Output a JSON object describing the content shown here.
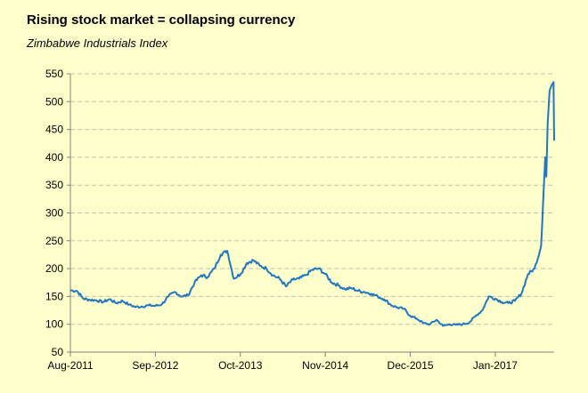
{
  "chart_data": {
    "type": "line",
    "title": "Rising stock market = collapsing currency",
    "subtitle": "Zimbabwe Industrials Index",
    "xlabel": "",
    "ylabel": "",
    "ylim": [
      50,
      550
    ],
    "yticks": [
      50,
      100,
      150,
      200,
      250,
      300,
      350,
      400,
      450,
      500,
      550
    ],
    "xlim": [
      "2011-08",
      "2017-10"
    ],
    "xticks": [
      "Aug-2011",
      "Sep-2012",
      "Oct-2013",
      "Nov-2014",
      "Dec-2015",
      "Jan-2017"
    ],
    "grid": true,
    "legend": "none",
    "line_color": "#1F77C4",
    "series": [
      {
        "name": "",
        "points": [
          [
            "2011-08",
            161
          ],
          [
            "2011-09",
            160
          ],
          [
            "2011-10",
            146
          ],
          [
            "2011-11",
            144
          ],
          [
            "2011-12",
            143
          ],
          [
            "2012-01",
            140
          ],
          [
            "2012-02",
            145
          ],
          [
            "2012-03",
            138
          ],
          [
            "2012-04",
            142
          ],
          [
            "2012-05",
            135
          ],
          [
            "2012-06",
            131
          ],
          [
            "2012-07",
            132
          ],
          [
            "2012-08",
            134
          ],
          [
            "2012-09",
            133
          ],
          [
            "2012-10",
            136
          ],
          [
            "2012-11",
            150
          ],
          [
            "2012-12",
            158
          ],
          [
            "2013-01",
            150
          ],
          [
            "2013-02",
            152
          ],
          [
            "2013-03",
            175
          ],
          [
            "2013-04",
            188
          ],
          [
            "2013-05",
            185
          ],
          [
            "2013-06",
            200
          ],
          [
            "2013-07",
            225
          ],
          [
            "2013-08",
            232
          ],
          [
            "2013-09",
            182
          ],
          [
            "2013-10",
            190
          ],
          [
            "2013-11",
            210
          ],
          [
            "2013-12",
            215
          ],
          [
            "2014-01",
            205
          ],
          [
            "2014-02",
            200
          ],
          [
            "2014-03",
            188
          ],
          [
            "2014-04",
            182
          ],
          [
            "2014-05",
            168
          ],
          [
            "2014-06",
            180
          ],
          [
            "2014-07",
            182
          ],
          [
            "2014-08",
            188
          ],
          [
            "2014-09",
            198
          ],
          [
            "2014-10",
            200
          ],
          [
            "2014-11",
            190
          ],
          [
            "2014-12",
            175
          ],
          [
            "2015-01",
            170
          ],
          [
            "2015-02",
            163
          ],
          [
            "2015-03",
            165
          ],
          [
            "2015-04",
            160
          ],
          [
            "2015-05",
            158
          ],
          [
            "2015-06",
            155
          ],
          [
            "2015-07",
            150
          ],
          [
            "2015-08",
            145
          ],
          [
            "2015-09",
            135
          ],
          [
            "2015-10",
            130
          ],
          [
            "2015-11",
            128
          ],
          [
            "2015-12",
            115
          ],
          [
            "2016-01",
            110
          ],
          [
            "2016-02",
            102
          ],
          [
            "2016-03",
            100
          ],
          [
            "2016-04",
            108
          ],
          [
            "2016-05",
            97
          ],
          [
            "2016-06",
            100
          ],
          [
            "2016-07",
            99
          ],
          [
            "2016-08",
            100
          ],
          [
            "2016-09",
            103
          ],
          [
            "2016-10",
            115
          ],
          [
            "2016-11",
            125
          ],
          [
            "2016-12",
            150
          ],
          [
            "2017-01",
            146
          ],
          [
            "2017-02",
            140
          ],
          [
            "2017-03",
            138
          ],
          [
            "2017-04",
            142
          ],
          [
            "2017-05",
            155
          ],
          [
            "2017-06",
            190
          ],
          [
            "2017-07",
            200
          ],
          [
            "2017-08",
            240
          ],
          [
            "2017-08-20",
            400
          ],
          [
            "2017-08-25",
            365
          ],
          [
            "2017-09",
            460
          ],
          [
            "2017-09-10",
            520
          ],
          [
            "2017-09-20",
            530
          ],
          [
            "2017-09-28",
            535
          ],
          [
            "2017-10",
            430
          ]
        ]
      }
    ]
  }
}
